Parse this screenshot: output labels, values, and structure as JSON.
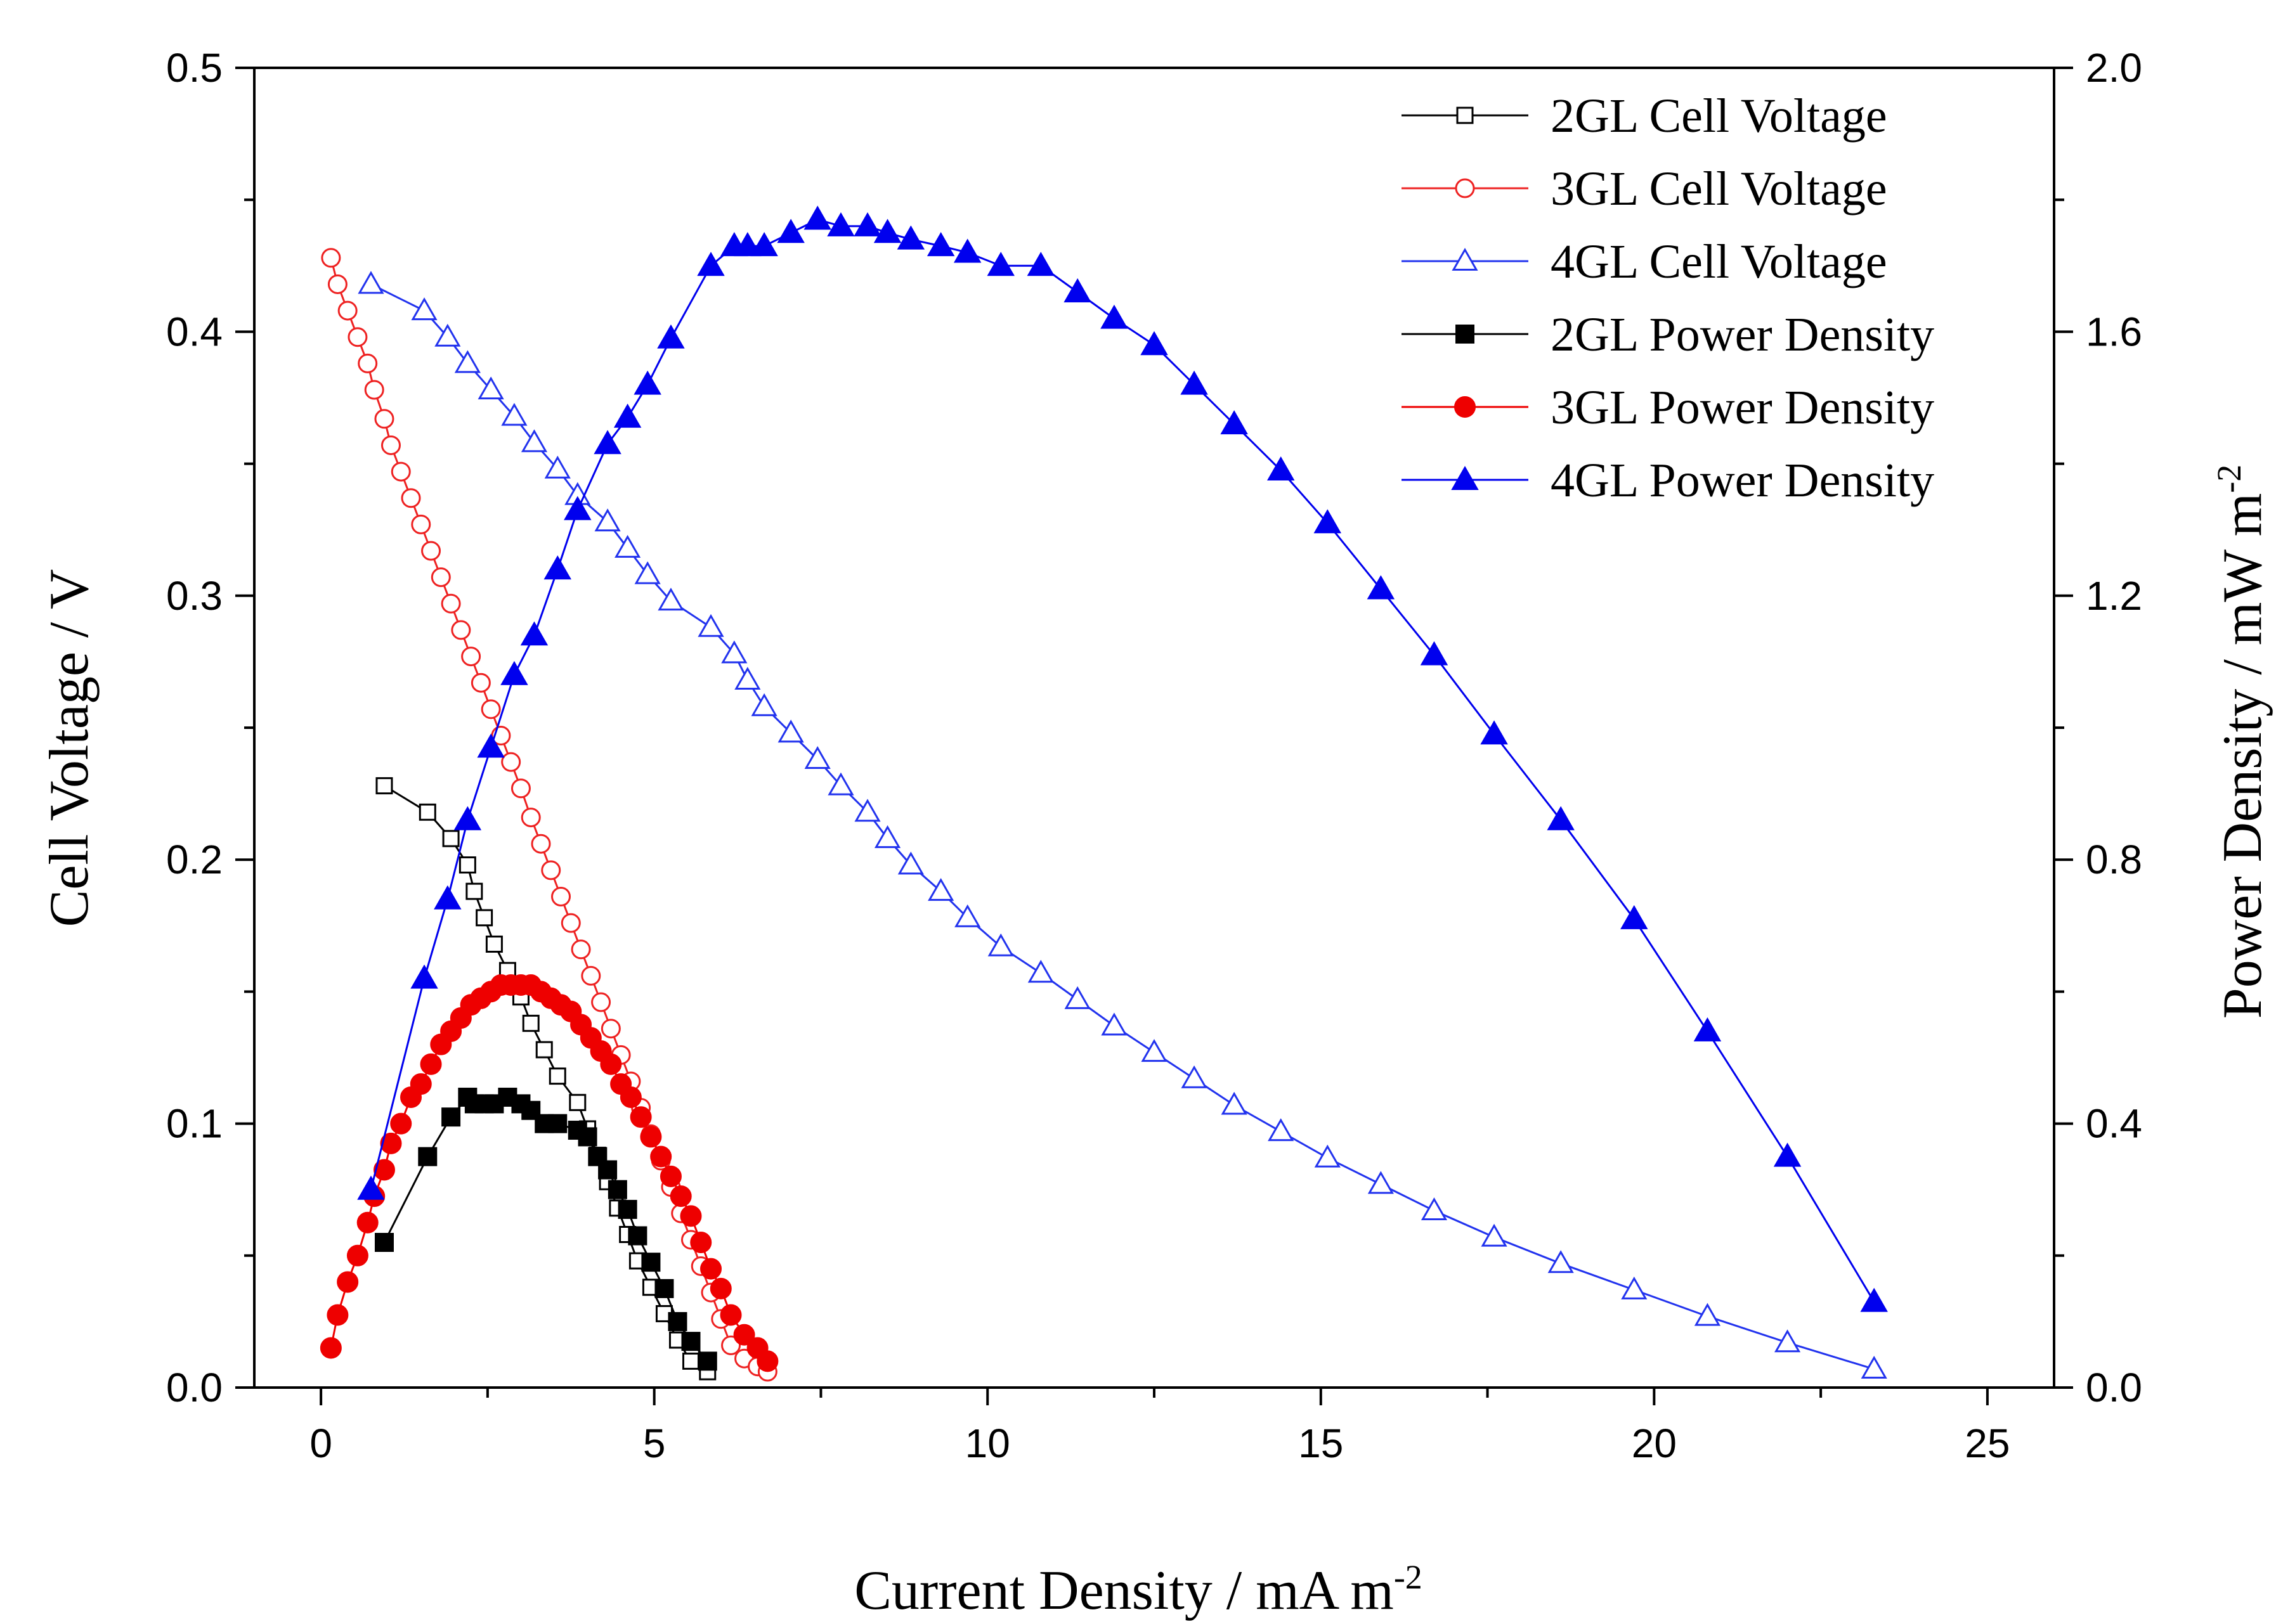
{
  "chart_data": {
    "type": "line",
    "title": "",
    "xlabel": "Current Density / mA m",
    "xlabel_sup": "-2",
    "ylabel_left": "Cell Voltage / V",
    "ylabel_right": "Power Density / mW m",
    "ylabel_right_sup": "-2",
    "xlim": [
      -1,
      26
    ],
    "ylim_left": [
      0,
      0.5
    ],
    "ylim_right": [
      0,
      2.0
    ],
    "x_ticks": [
      0,
      5,
      10,
      15,
      20,
      25
    ],
    "x_tick_labels": [
      "0",
      "5",
      "10",
      "15",
      "20",
      "25"
    ],
    "y_left_ticks": [
      0.0,
      0.1,
      0.2,
      0.3,
      0.4,
      0.5
    ],
    "y_left_tick_labels": [
      "0.0",
      "0.1",
      "0.2",
      "0.3",
      "0.4",
      "0.5"
    ],
    "y_right_ticks": [
      0.0,
      0.4,
      0.8,
      1.2,
      1.6,
      2.0
    ],
    "y_right_tick_labels": [
      "0.0",
      "0.4",
      "0.8",
      "1.2",
      "1.6",
      "2.0"
    ],
    "legend_position": "top-right",
    "series": [
      {
        "name": "2GL Cell Voltage",
        "axis": "left",
        "color": "#000000",
        "marker": "square",
        "filled": false,
        "x": [
          0.95,
          1.6,
          1.95,
          2.2,
          2.3,
          2.45,
          2.6,
          2.8,
          3.0,
          3.15,
          3.35,
          3.55,
          3.85,
          4.0,
          4.15,
          4.3,
          4.45,
          4.6,
          4.75,
          4.95,
          5.15,
          5.35,
          5.55,
          5.8
        ],
        "y": [
          0.228,
          0.218,
          0.208,
          0.198,
          0.188,
          0.178,
          0.168,
          0.158,
          0.148,
          0.138,
          0.128,
          0.118,
          0.108,
          0.098,
          0.088,
          0.078,
          0.068,
          0.058,
          0.048,
          0.038,
          0.028,
          0.018,
          0.01,
          0.006
        ]
      },
      {
        "name": "3GL Cell Voltage",
        "axis": "left",
        "color": "#ee2222",
        "marker": "circle",
        "filled": false,
        "x": [
          0.15,
          0.25,
          0.4,
          0.55,
          0.7,
          0.8,
          0.95,
          1.05,
          1.2,
          1.35,
          1.5,
          1.65,
          1.8,
          1.95,
          2.1,
          2.25,
          2.4,
          2.55,
          2.7,
          2.85,
          3.0,
          3.15,
          3.3,
          3.45,
          3.6,
          3.75,
          3.9,
          4.05,
          4.2,
          4.35,
          4.5,
          4.65,
          4.8,
          4.95,
          5.1,
          5.25,
          5.4,
          5.55,
          5.7,
          5.85,
          6.0,
          6.15,
          6.35,
          6.55,
          6.7
        ],
        "y": [
          0.428,
          0.418,
          0.408,
          0.398,
          0.388,
          0.378,
          0.367,
          0.357,
          0.347,
          0.337,
          0.327,
          0.317,
          0.307,
          0.297,
          0.287,
          0.277,
          0.267,
          0.257,
          0.247,
          0.237,
          0.227,
          0.216,
          0.206,
          0.196,
          0.186,
          0.176,
          0.166,
          0.156,
          0.146,
          0.136,
          0.126,
          0.116,
          0.106,
          0.096,
          0.086,
          0.076,
          0.066,
          0.056,
          0.046,
          0.036,
          0.026,
          0.016,
          0.011,
          0.008,
          0.006
        ]
      },
      {
        "name": "4GL Cell Voltage",
        "axis": "left",
        "color": "#2233ee",
        "marker": "triangle",
        "filled": false,
        "x": [
          0.75,
          1.55,
          1.9,
          2.2,
          2.55,
          2.9,
          3.2,
          3.55,
          3.85,
          4.3,
          4.6,
          4.9,
          5.25,
          5.85,
          6.2,
          6.4,
          6.65,
          7.05,
          7.45,
          7.8,
          8.2,
          8.5,
          8.85,
          9.3,
          9.7,
          10.2,
          10.8,
          11.35,
          11.9,
          12.5,
          13.1,
          13.7,
          14.4,
          15.1,
          15.9,
          16.7,
          17.6,
          18.6,
          19.7,
          20.8,
          22.0,
          23.3
        ],
        "y": [
          0.418,
          0.408,
          0.398,
          0.388,
          0.378,
          0.368,
          0.358,
          0.348,
          0.338,
          0.328,
          0.318,
          0.308,
          0.298,
          0.288,
          0.278,
          0.268,
          0.258,
          0.248,
          0.238,
          0.228,
          0.218,
          0.208,
          0.198,
          0.188,
          0.178,
          0.167,
          0.157,
          0.147,
          0.137,
          0.127,
          0.117,
          0.107,
          0.097,
          0.087,
          0.077,
          0.067,
          0.057,
          0.047,
          0.037,
          0.027,
          0.017,
          0.007
        ]
      },
      {
        "name": "2GL Power Density",
        "axis": "right",
        "color": "#000000",
        "marker": "square",
        "filled": true,
        "x": [
          0.95,
          1.6,
          1.95,
          2.2,
          2.3,
          2.45,
          2.6,
          2.8,
          3.0,
          3.15,
          3.35,
          3.55,
          3.85,
          4.0,
          4.15,
          4.3,
          4.45,
          4.6,
          4.75,
          4.95,
          5.15,
          5.35,
          5.55,
          5.8
        ],
        "y": [
          0.22,
          0.35,
          0.41,
          0.44,
          0.43,
          0.43,
          0.43,
          0.44,
          0.43,
          0.42,
          0.4,
          0.4,
          0.39,
          0.38,
          0.35,
          0.33,
          0.3,
          0.27,
          0.23,
          0.19,
          0.15,
          0.1,
          0.07,
          0.04
        ]
      },
      {
        "name": "3GL Power Density",
        "axis": "right",
        "color": "#ee0000",
        "marker": "circle",
        "filled": true,
        "x": [
          0.15,
          0.25,
          0.4,
          0.55,
          0.7,
          0.8,
          0.95,
          1.05,
          1.2,
          1.35,
          1.5,
          1.65,
          1.8,
          1.95,
          2.1,
          2.25,
          2.4,
          2.55,
          2.7,
          2.85,
          3.0,
          3.15,
          3.3,
          3.45,
          3.6,
          3.75,
          3.9,
          4.05,
          4.2,
          4.35,
          4.5,
          4.65,
          4.8,
          4.95,
          5.1,
          5.25,
          5.4,
          5.55,
          5.7,
          5.85,
          6.0,
          6.15,
          6.35,
          6.55,
          6.7
        ],
        "y": [
          0.06,
          0.11,
          0.16,
          0.2,
          0.25,
          0.29,
          0.33,
          0.37,
          0.4,
          0.44,
          0.46,
          0.49,
          0.52,
          0.54,
          0.56,
          0.58,
          0.59,
          0.6,
          0.61,
          0.61,
          0.61,
          0.61,
          0.6,
          0.59,
          0.58,
          0.57,
          0.55,
          0.53,
          0.51,
          0.49,
          0.46,
          0.44,
          0.41,
          0.38,
          0.35,
          0.32,
          0.29,
          0.26,
          0.22,
          0.18,
          0.15,
          0.11,
          0.08,
          0.06,
          0.04
        ]
      },
      {
        "name": "4GL Power Density",
        "axis": "right",
        "color": "#0000ee",
        "marker": "triangle",
        "filled": true,
        "x": [
          0.75,
          1.55,
          1.9,
          2.2,
          2.55,
          2.9,
          3.2,
          3.55,
          3.85,
          4.3,
          4.6,
          4.9,
          5.25,
          5.85,
          6.2,
          6.4,
          6.65,
          7.05,
          7.45,
          7.8,
          8.2,
          8.5,
          8.85,
          9.3,
          9.7,
          10.2,
          10.8,
          11.35,
          11.9,
          12.5,
          13.1,
          13.7,
          14.4,
          15.1,
          15.9,
          16.7,
          17.6,
          18.6,
          19.7,
          20.8,
          22.0,
          23.3
        ],
        "y": [
          0.3,
          0.62,
          0.74,
          0.86,
          0.97,
          1.08,
          1.14,
          1.24,
          1.33,
          1.43,
          1.47,
          1.52,
          1.59,
          1.7,
          1.73,
          1.73,
          1.73,
          1.75,
          1.77,
          1.76,
          1.76,
          1.75,
          1.74,
          1.73,
          1.72,
          1.7,
          1.7,
          1.66,
          1.62,
          1.58,
          1.52,
          1.46,
          1.39,
          1.31,
          1.21,
          1.11,
          0.99,
          0.86,
          0.71,
          0.54,
          0.35,
          0.13
        ]
      }
    ]
  }
}
